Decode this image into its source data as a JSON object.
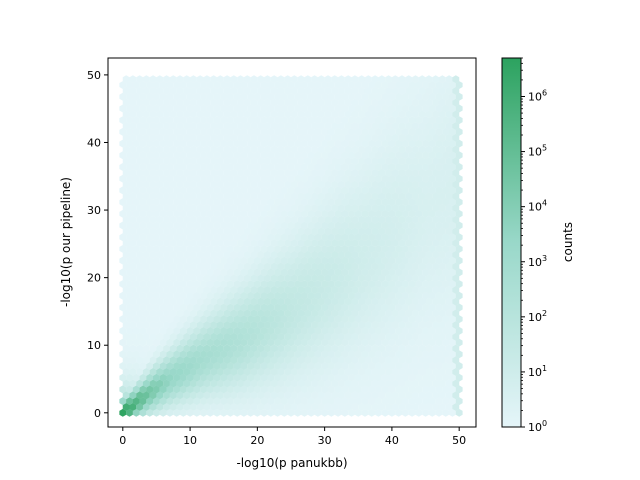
{
  "chart_data": {
    "type": "heatmap",
    "subtype": "hexbin",
    "title": "",
    "xlabel": "-log10(p panukbb)",
    "ylabel": "-log10(p our pipeline)",
    "xlim": [
      -2.2,
      52.5
    ],
    "ylim": [
      -2.1,
      52.5
    ],
    "xticks": [
      0,
      10,
      20,
      30,
      40,
      50
    ],
    "yticks": [
      0,
      10,
      20,
      30,
      40,
      50
    ],
    "xtick_labels": [
      "0",
      "10",
      "20",
      "30",
      "40",
      "50"
    ],
    "ytick_labels": [
      "0",
      "10",
      "20",
      "30",
      "40",
      "50"
    ],
    "data_extent": {
      "x": [
        0,
        50
      ],
      "y": [
        0,
        50
      ]
    },
    "density_regions": [
      {
        "x": 0.5,
        "y": 0.3,
        "log10_count": 6.6
      },
      {
        "x": 2,
        "y": 1.5,
        "log10_count": 5.5
      },
      {
        "x": 4,
        "y": 3,
        "log10_count": 4.5
      },
      {
        "x": 7,
        "y": 5,
        "log10_count": 3.5
      },
      {
        "x": 12,
        "y": 8,
        "log10_count": 2.8
      },
      {
        "x": 18,
        "y": 11,
        "log10_count": 2.3
      },
      {
        "x": 25,
        "y": 15,
        "log10_count": 1.6
      },
      {
        "x": 35,
        "y": 22,
        "log10_count": 1.0
      },
      {
        "x": 45,
        "y": 30,
        "log10_count": 0.6
      }
    ],
    "edge_accumulation": {
      "x": 50,
      "y_range": [
        0,
        50
      ],
      "log10_count": 1.5
    },
    "background_log10_count": 0,
    "colorbar": {
      "label": "counts",
      "scale": "log",
      "min": 1,
      "max": 5000000,
      "ticks": [
        {
          "value": 1,
          "base": "10",
          "exp": "0"
        },
        {
          "value": 10,
          "base": "10",
          "exp": "1"
        },
        {
          "value": 100,
          "base": "10",
          "exp": "2"
        },
        {
          "value": 1000,
          "base": "10",
          "exp": "3"
        },
        {
          "value": 10000,
          "base": "10",
          "exp": "4"
        },
        {
          "value": 100000,
          "base": "10",
          "exp": "5"
        },
        {
          "value": 1000000,
          "base": "10",
          "exp": "6"
        }
      ],
      "color_low": "#e5f5f9",
      "color_mid": "#99d8c9",
      "color_high": "#2ca25f"
    }
  }
}
